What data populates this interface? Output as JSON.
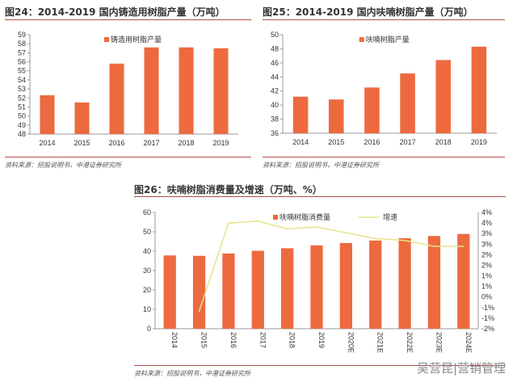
{
  "watermark": "吴营昆|营销管理",
  "colors": {
    "bar": "#ed6a3f",
    "line": "#e6e38a",
    "rule": "#b0504a"
  },
  "chart_data": [
    {
      "type": "bar",
      "title": "图24：2014-2019 国内铸造用树脂产量（万吨）",
      "source": "资料来源：招股说明书，中港证券研究所",
      "categories": [
        "2014",
        "2015",
        "2016",
        "2017",
        "2018",
        "2019"
      ],
      "series": [
        {
          "name": "铸造用树脂产量",
          "values": [
            52.3,
            51.5,
            55.8,
            57.6,
            57.6,
            57.5
          ]
        }
      ],
      "ylim": [
        48,
        59
      ],
      "yticks": [
        "48",
        "49",
        "50",
        "51",
        "52",
        "53",
        "54",
        "55",
        "56",
        "57",
        "58",
        "59"
      ],
      "legend": "top"
    },
    {
      "type": "bar",
      "title": "图25：2014-2019 国内呋喃树脂产量（万吨）",
      "source": "资料来源：招股说明书，中港证券研究所",
      "categories": [
        "2014",
        "2015",
        "2016",
        "2017",
        "2018",
        "2019"
      ],
      "series": [
        {
          "name": "呋喃树脂产量",
          "values": [
            41.2,
            40.8,
            42.5,
            44.5,
            46.4,
            48.3
          ]
        }
      ],
      "ylim": [
        36,
        50
      ],
      "yticks": [
        "36",
        "38",
        "40",
        "42",
        "44",
        "46",
        "48",
        "50"
      ],
      "legend": "top"
    },
    {
      "type": "bar+line",
      "title": "图26：呋喃树脂消费量及增速（万吨、%）",
      "source": "资料来源：招股说明书，中港证券研究所",
      "categories": [
        "2014",
        "2015",
        "2016",
        "2017",
        "2018",
        "2019",
        "2020E",
        "2021E",
        "2022E",
        "2023E",
        "2024E"
      ],
      "series": [
        {
          "name": "呋喃树脂消费量",
          "type": "bar",
          "axis": "left",
          "values": [
            37.8,
            37.6,
            38.8,
            40.2,
            41.5,
            43.0,
            44.2,
            45.5,
            46.7,
            47.8,
            48.9
          ]
        },
        {
          "name": "增速",
          "type": "line",
          "axis": "right",
          "values": [
            null,
            -1.1,
            3.45,
            3.55,
            3.15,
            3.25,
            2.95,
            2.65,
            2.55,
            2.25,
            2.25
          ]
        }
      ],
      "ylim": [
        0,
        60
      ],
      "yticks": [
        "0",
        "10",
        "20",
        "30",
        "40",
        "50",
        "60"
      ],
      "y2lim": [
        -2,
        4
      ],
      "y2ticks": [
        "-2%",
        "-1%",
        "-1%",
        "0%",
        "1%",
        "1%",
        "2%",
        "2%",
        "3%",
        "3%",
        "4%",
        "4%"
      ],
      "legend": "top"
    }
  ]
}
